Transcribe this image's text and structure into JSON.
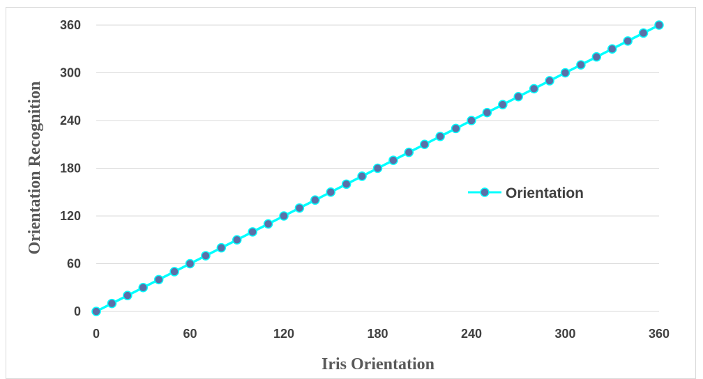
{
  "chart_data": {
    "type": "line",
    "title": "",
    "xlabel": "Iris Orientation",
    "ylabel": "Orientation Recognition",
    "xlim": [
      0,
      360
    ],
    "ylim": [
      0,
      360
    ],
    "x_ticks": [
      0,
      60,
      120,
      180,
      240,
      300,
      360
    ],
    "y_ticks": [
      0,
      60,
      120,
      180,
      240,
      300,
      360
    ],
    "grid": "horizontal",
    "legend_position": "right",
    "series": [
      {
        "name": "Orientation",
        "line_color": "#00FFFF",
        "marker_color": "#5B6FA8",
        "x": [
          0,
          10,
          20,
          30,
          40,
          50,
          60,
          70,
          80,
          90,
          100,
          110,
          120,
          130,
          140,
          150,
          160,
          170,
          180,
          190,
          200,
          210,
          220,
          230,
          240,
          250,
          260,
          270,
          280,
          290,
          300,
          310,
          320,
          330,
          340,
          350,
          360
        ],
        "y": [
          0,
          10,
          20,
          30,
          40,
          50,
          60,
          70,
          80,
          90,
          100,
          110,
          120,
          130,
          140,
          150,
          160,
          170,
          180,
          190,
          200,
          210,
          220,
          230,
          240,
          250,
          260,
          270,
          280,
          290,
          300,
          310,
          320,
          330,
          340,
          350,
          360
        ]
      }
    ]
  }
}
